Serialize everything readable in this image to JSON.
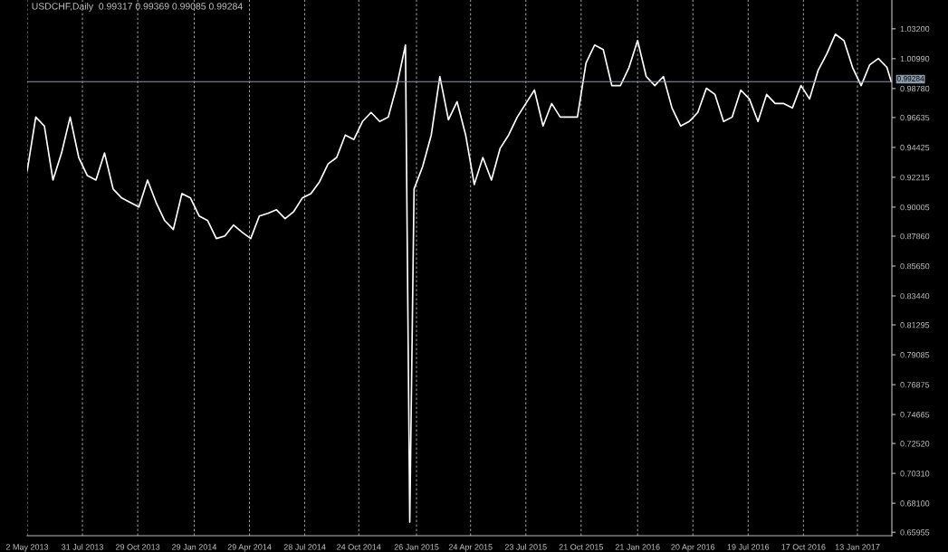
{
  "chart_data": {
    "type": "line",
    "title": "USDCHF,Daily  0.99317 0.99369 0.99085 0.99284",
    "x": [
      "2013-05-02",
      "2013-05-16",
      "2013-05-30",
      "2013-06-13",
      "2013-06-27",
      "2013-07-11",
      "2013-07-25",
      "2013-08-08",
      "2013-08-22",
      "2013-09-05",
      "2013-09-19",
      "2013-10-03",
      "2013-10-17",
      "2013-10-31",
      "2013-11-14",
      "2013-11-28",
      "2013-12-12",
      "2013-12-26",
      "2014-01-09",
      "2014-01-23",
      "2014-02-06",
      "2014-02-20",
      "2014-03-06",
      "2014-03-20",
      "2014-04-03",
      "2014-04-17",
      "2014-05-01",
      "2014-05-15",
      "2014-05-29",
      "2014-06-12",
      "2014-06-26",
      "2014-07-10",
      "2014-07-24",
      "2014-08-07",
      "2014-08-21",
      "2014-09-04",
      "2014-09-18",
      "2014-10-02",
      "2014-10-16",
      "2014-10-30",
      "2014-11-13",
      "2014-11-27",
      "2014-12-11",
      "2014-12-25",
      "2015-01-08",
      "2015-01-15",
      "2015-01-22",
      "2015-02-05",
      "2015-02-19",
      "2015-03-05",
      "2015-03-19",
      "2015-04-02",
      "2015-04-16",
      "2015-04-30",
      "2015-05-14",
      "2015-05-28",
      "2015-06-11",
      "2015-06-25",
      "2015-07-09",
      "2015-07-23",
      "2015-08-06",
      "2015-08-20",
      "2015-09-03",
      "2015-09-17",
      "2015-10-01",
      "2015-10-15",
      "2015-10-29",
      "2015-11-12",
      "2015-11-26",
      "2015-12-10",
      "2015-12-24",
      "2016-01-07",
      "2016-01-21",
      "2016-02-04",
      "2016-02-18",
      "2016-03-03",
      "2016-03-17",
      "2016-03-31",
      "2016-04-14",
      "2016-04-28",
      "2016-05-12",
      "2016-05-26",
      "2016-06-09",
      "2016-06-23",
      "2016-07-07",
      "2016-07-21",
      "2016-08-04",
      "2016-08-18",
      "2016-09-01",
      "2016-09-15",
      "2016-09-29",
      "2016-10-13",
      "2016-10-27",
      "2016-11-10",
      "2016-11-24",
      "2016-12-08",
      "2016-12-22",
      "2017-01-05",
      "2017-01-19",
      "2017-02-02",
      "2017-02-16",
      "2017-03-02",
      "2017-03-09"
    ],
    "series": [
      {
        "color": "#ffffff",
        "values": [
          0.9268,
          0.9667,
          0.9601,
          0.9201,
          0.9401,
          0.9667,
          0.9368,
          0.9234,
          0.9201,
          0.9401,
          0.9135,
          0.9068,
          0.9035,
          0.9001,
          0.9201,
          0.9035,
          0.8901,
          0.8835,
          0.9101,
          0.9068,
          0.8935,
          0.8901,
          0.8768,
          0.8788,
          0.8868,
          0.8815,
          0.8768,
          0.8935,
          0.8955,
          0.8981,
          0.8915,
          0.8968,
          0.9068,
          0.9101,
          0.9188,
          0.9321,
          0.9368,
          0.9534,
          0.9501,
          0.9634,
          0.9701,
          0.9634,
          0.9667,
          0.99,
          1.02,
          0.667,
          0.9135,
          0.9301,
          0.9534,
          0.9967,
          0.9647,
          0.9781,
          0.9534,
          0.9168,
          0.9368,
          0.9201,
          0.9434,
          0.9534,
          0.9667,
          0.9767,
          0.9867,
          0.9601,
          0.9767,
          0.9667,
          0.9667,
          0.9667,
          1.0067,
          1.02,
          1.0167,
          0.99,
          0.99,
          1.0034,
          1.0233,
          0.9967,
          0.99,
          0.9967,
          0.9734,
          0.9601,
          0.9634,
          0.9701,
          0.988,
          0.9834,
          0.9634,
          0.9667,
          0.9867,
          0.9801,
          0.9634,
          0.9834,
          0.9767,
          0.9767,
          0.9734,
          0.99,
          0.9801,
          1.0014,
          1.0134,
          1.028,
          1.0233,
          1.0034,
          0.99,
          1.0054,
          1.01,
          1.0034,
          0.9928
        ]
      }
    ],
    "xlim": [
      "2013-05-02",
      "2017-03-10"
    ],
    "xticks": [
      {
        "value": "2013-05-02",
        "label": "2 May 2013"
      },
      {
        "value": "2013-07-31",
        "label": "31 Jul 2013"
      },
      {
        "value": "2013-10-29",
        "label": "29 Oct 2013"
      },
      {
        "value": "2014-01-29",
        "label": "29 Jan 2014"
      },
      {
        "value": "2014-04-29",
        "label": "29 Apr 2014"
      },
      {
        "value": "2014-07-28",
        "label": "28 Jul 2014"
      },
      {
        "value": "2014-10-24",
        "label": "24 Oct 2014"
      },
      {
        "value": "2015-01-26",
        "label": "26 Jan 2015"
      },
      {
        "value": "2015-04-24",
        "label": "24 Apr 2015"
      },
      {
        "value": "2015-07-23",
        "label": "23 Jul 2015"
      },
      {
        "value": "2015-10-21",
        "label": "21 Oct 2015"
      },
      {
        "value": "2016-01-21",
        "label": "21 Jan 2016"
      },
      {
        "value": "2016-04-20",
        "label": "20 Apr 2016"
      },
      {
        "value": "2016-07-19",
        "label": "19 Jul 2016"
      },
      {
        "value": "2016-10-17",
        "label": "17 Oct 2016"
      },
      {
        "value": "2017-01-13",
        "label": "13 Jan 2017"
      }
    ],
    "ylim": [
      0.657,
      1.0533
    ],
    "yticks": [
      {
        "value": 0.65955,
        "label": "0.65955"
      },
      {
        "value": 0.681,
        "label": "0.68100"
      },
      {
        "value": 0.7031,
        "label": "0.70310"
      },
      {
        "value": 0.7252,
        "label": "0.72520"
      },
      {
        "value": 0.74665,
        "label": "0.74665"
      },
      {
        "value": 0.76875,
        "label": "0.76875"
      },
      {
        "value": 0.79085,
        "label": "0.79085"
      },
      {
        "value": 0.81295,
        "label": "0.81295"
      },
      {
        "value": 0.8344,
        "label": "0.83440"
      },
      {
        "value": 0.8565,
        "label": "0.85650"
      },
      {
        "value": 0.8786,
        "label": "0.87860"
      },
      {
        "value": 0.90005,
        "label": "0.90005"
      },
      {
        "value": 0.92215,
        "label": "0.92215"
      },
      {
        "value": 0.94425,
        "label": "0.94425"
      },
      {
        "value": 0.96635,
        "label": "0.96635"
      },
      {
        "value": 0.9878,
        "label": "0.98780"
      },
      {
        "value": 1.0099,
        "label": "1.00990"
      },
      {
        "value": 1.032,
        "label": "1.03200"
      }
    ],
    "ref_lines": [
      {
        "axis": "y",
        "value": 0.99284,
        "label": "0.99284",
        "color": "#8c9bab"
      }
    ],
    "grid": "x",
    "legend": false,
    "line_style": "solid",
    "marker": "none"
  }
}
